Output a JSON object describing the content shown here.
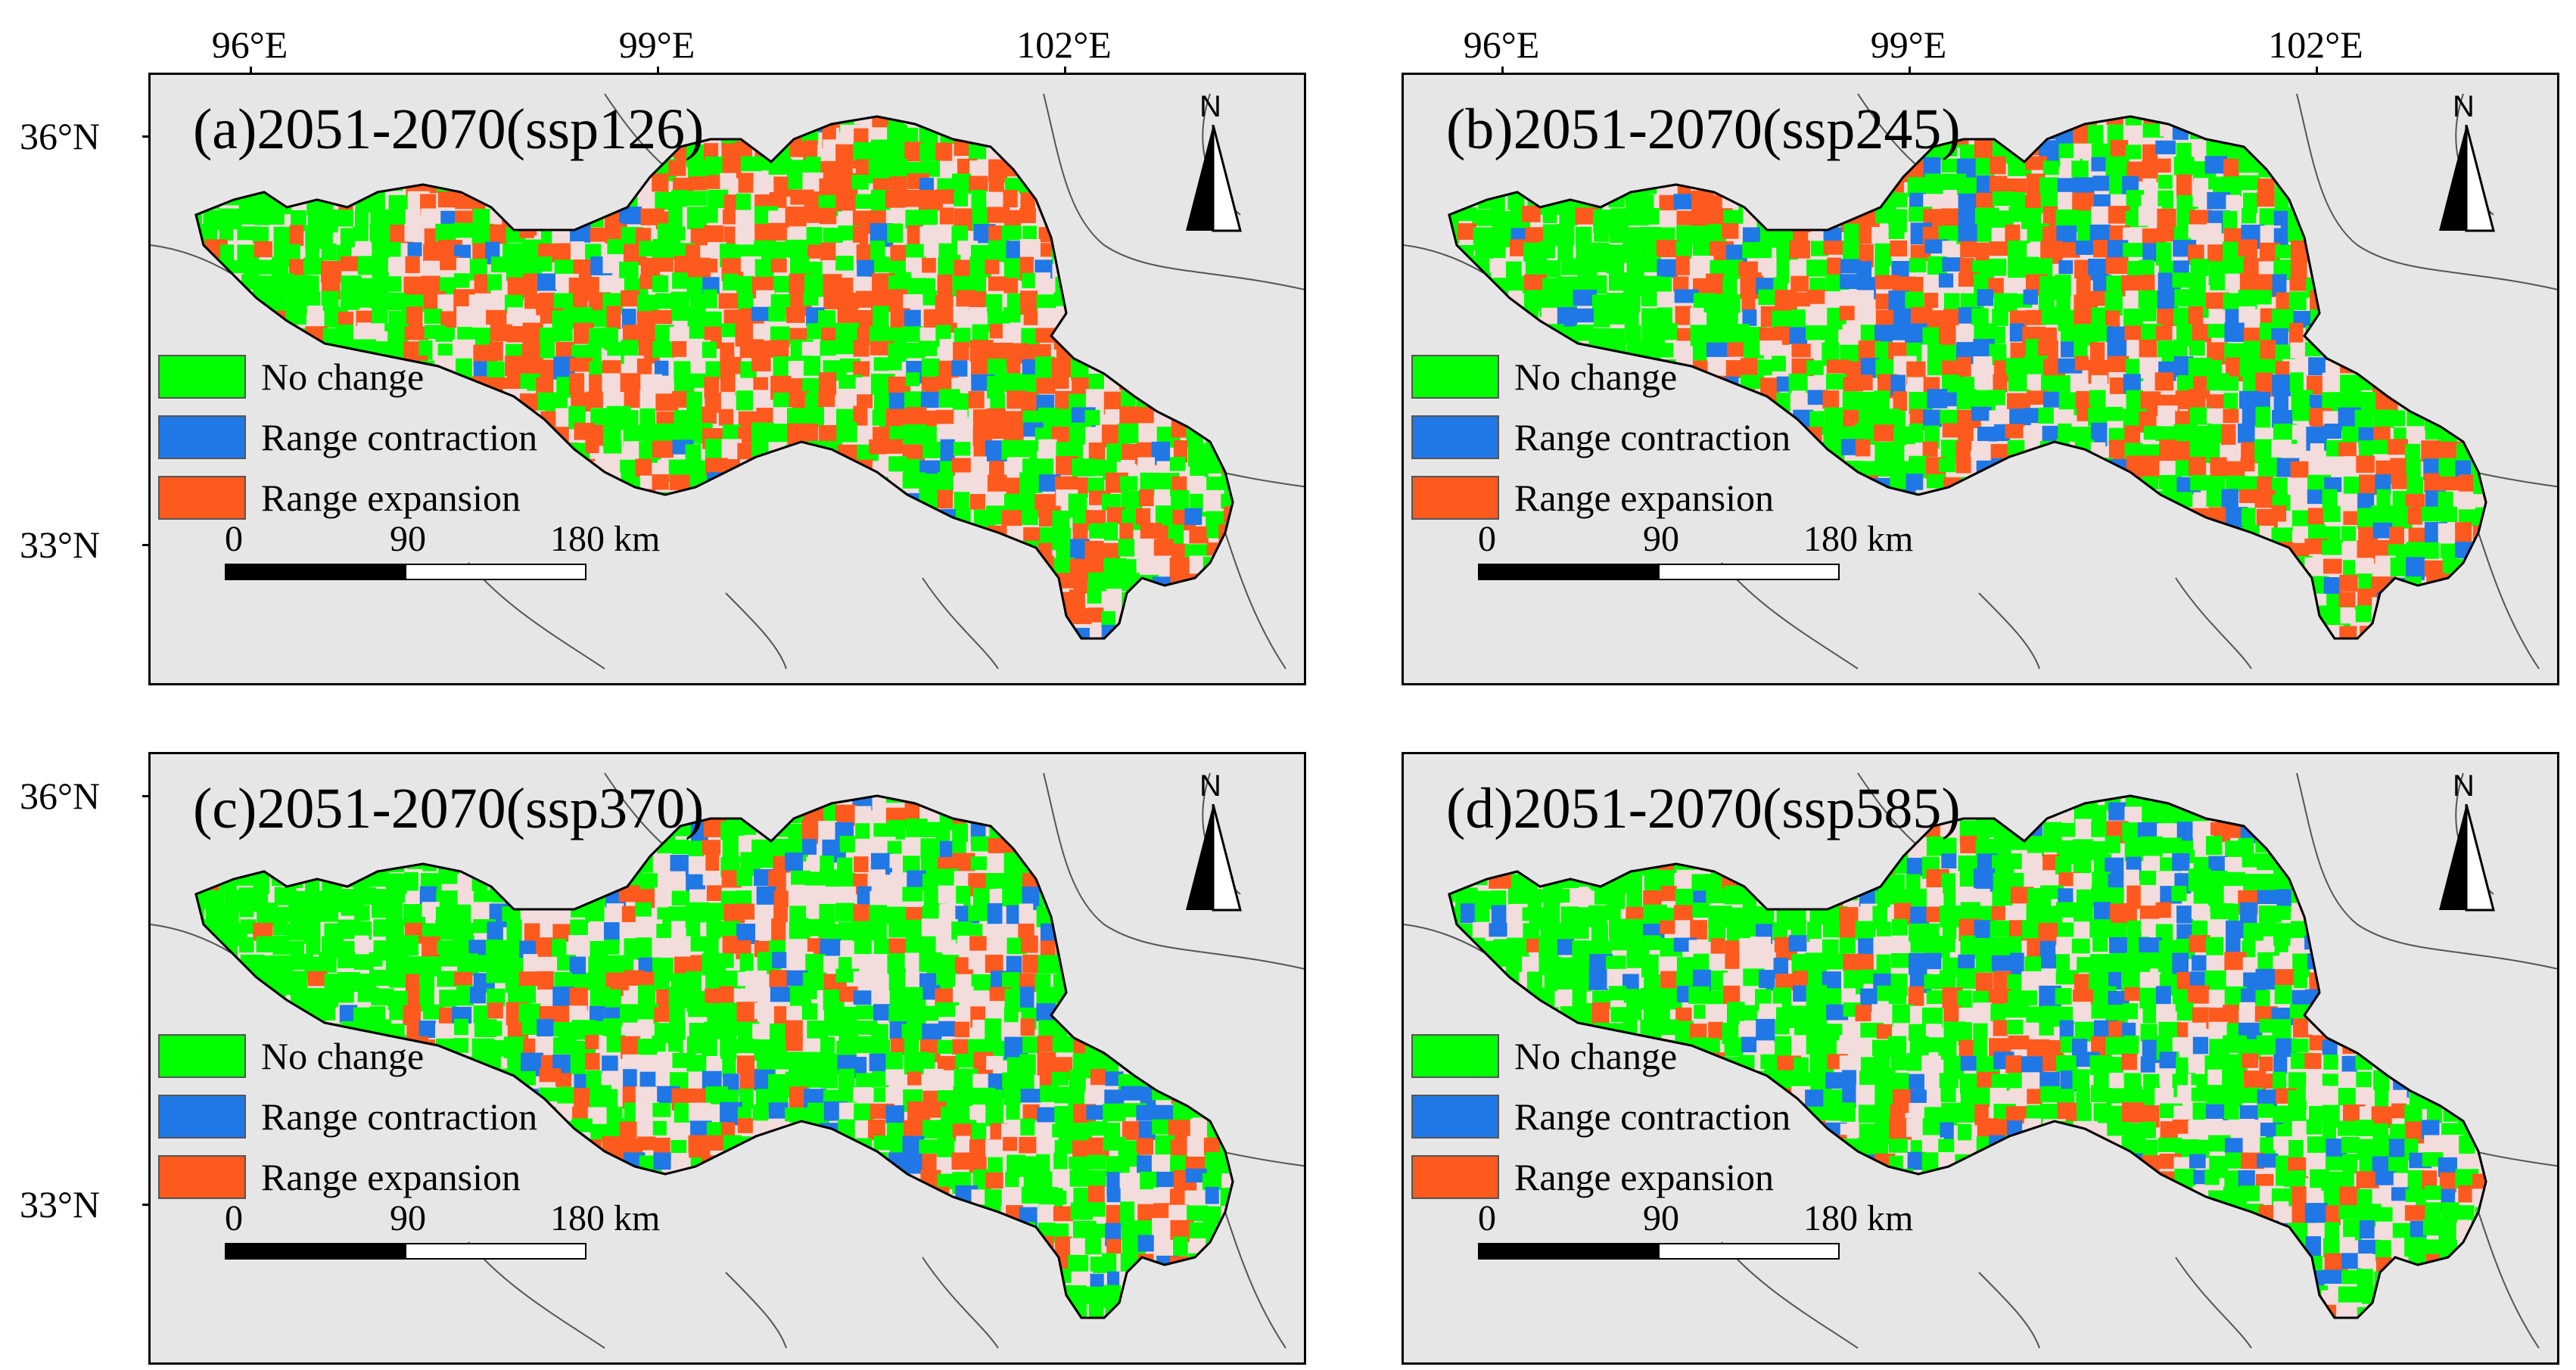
{
  "lon_labels": [
    "96°E",
    "99°E",
    "102°E"
  ],
  "lat_labels": [
    "36°N",
    "33°N"
  ],
  "panels": [
    {
      "title": "(a)2051-2070(ssp126)"
    },
    {
      "title": "(b)2051-2070(ssp245)"
    },
    {
      "title": "(c)2051-2070(ssp370)"
    },
    {
      "title": "(d)2051-2070(ssp585)"
    }
  ],
  "legend": [
    {
      "label": "No change",
      "color": "#00ff00"
    },
    {
      "label": "Range contraction",
      "color": "#1f78e6"
    },
    {
      "label": "Range expansion",
      "color": "#ff5a1e"
    }
  ],
  "scale_bar": {
    "zero": "0",
    "mid": "90",
    "max": "180 km"
  },
  "north_label": "N",
  "colors": {
    "background": "#e6e6e6",
    "region_unsuitable": "#f2dcdc",
    "boundary": "#000000"
  }
}
